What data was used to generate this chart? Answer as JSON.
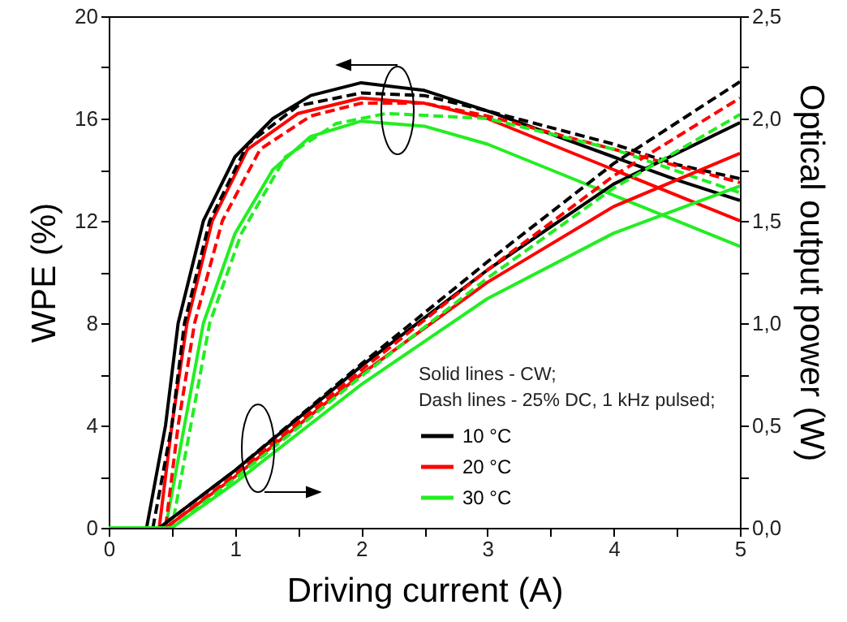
{
  "chart_data": {
    "type": "line",
    "xlabel": "Driving current (A)",
    "ylabel": "WPE (%)",
    "y2label": "Optical output power (W)",
    "xlim": [
      0,
      5
    ],
    "xticks": [
      0,
      {
        "value": 0.5,
        "label": null
      },
      1,
      {
        "value": 1.5,
        "label": null
      },
      2,
      {
        "value": 2.5,
        "label": null
      },
      3,
      {
        "value": 3.5,
        "label": null
      },
      4,
      {
        "value": 4.5,
        "label": null
      },
      5
    ],
    "ylim": [
      0,
      20
    ],
    "yticks": [
      0,
      {
        "value": 2,
        "label": null
      },
      4,
      {
        "value": 6,
        "label": null
      },
      8,
      {
        "value": 10,
        "label": null
      },
      12,
      {
        "value": 14,
        "label": null
      },
      16,
      {
        "value": 18,
        "label": null
      },
      20
    ],
    "y2lim": [
      0,
      2.5
    ],
    "y2ticks": [
      {
        "value": 0,
        "label": "0,0"
      },
      {
        "value": 0.25,
        "label": null
      },
      {
        "value": 0.5,
        "label": "0,5"
      },
      {
        "value": 0.75,
        "label": null
      },
      {
        "value": 1,
        "label": "1,0"
      },
      {
        "value": 1.25,
        "label": null
      },
      {
        "value": 1.5,
        "label": "1,5"
      },
      {
        "value": 1.75,
        "label": null
      },
      {
        "value": 2,
        "label": "2,0"
      },
      {
        "value": 2.25,
        "label": null
      },
      {
        "value": 2.5,
        "label": "2,5"
      }
    ],
    "legend": "bottom right",
    "grid": false,
    "marker": "none",
    "annotations": [
      "Solid lines - CW;",
      "Dash lines - 25% DC, 1 kHz pulsed;"
    ],
    "series": [
      {
        "name": "10 °C",
        "color": "#000000",
        "line_style": "solid",
        "x": [
          0,
          0.3,
          0.45,
          0.55,
          0.75,
          1,
          1.3,
          1.6,
          2,
          2.5,
          3,
          3.5,
          4,
          4.5,
          5
        ],
        "values": [
          0,
          0,
          4,
          8,
          12,
          14.5,
          16,
          16.9,
          17.4,
          17.1,
          16.3,
          15.4,
          14.5,
          13.6,
          12.8
        ]
      },
      {
        "name": "20 °C",
        "color": "#ff0000",
        "line_style": "solid",
        "x": [
          0,
          0.4,
          0.5,
          0.62,
          0.82,
          1.1,
          1.5,
          2,
          2.5,
          3,
          4,
          5
        ],
        "values": [
          0,
          0,
          4,
          8,
          12,
          14.8,
          16.2,
          16.8,
          16.6,
          16,
          14,
          12
        ]
      },
      {
        "name": "30 °C",
        "color": "#22ee22",
        "line_style": "solid",
        "x": [
          0,
          0.45,
          0.6,
          0.75,
          1,
          1.3,
          1.6,
          2,
          2.5,
          3,
          4,
          5
        ],
        "values": [
          0,
          0,
          4,
          8,
          11.5,
          14,
          15.3,
          15.9,
          15.7,
          15,
          13,
          11
        ]
      },
      {
        "color": "#000000",
        "line_style": "dashed",
        "x": [
          0,
          0.35,
          0.5,
          0.6,
          0.8,
          1.1,
          1.5,
          2,
          2.5,
          3,
          4,
          4.5,
          5
        ],
        "values": [
          0,
          0,
          4,
          8,
          12,
          15,
          16.5,
          17,
          16.9,
          16.3,
          15,
          14.2,
          13.65
        ]
      },
      {
        "color": "#ff0000",
        "line_style": "dashed",
        "x": [
          0,
          0.45,
          0.55,
          0.68,
          0.9,
          1.2,
          1.6,
          2,
          2.5,
          3,
          4,
          5
        ],
        "values": [
          0,
          0,
          4,
          8,
          12,
          14.8,
          16.1,
          16.6,
          16.6,
          16.1,
          14.8,
          13.5
        ]
      },
      {
        "color": "#22ee22",
        "line_style": "dashed",
        "x": [
          0,
          0.5,
          0.65,
          0.8,
          1.05,
          1.4,
          1.8,
          2.2,
          3,
          4,
          5
        ],
        "values": [
          0,
          0,
          4,
          8,
          11.5,
          14.5,
          15.8,
          16.2,
          16,
          14.8,
          13.1
        ]
      },
      {
        "color": "#000000",
        "line_style": "solid",
        "axis": "y2",
        "x": [
          0,
          0.4,
          1,
          2,
          3,
          4,
          5
        ],
        "values": [
          0,
          0,
          0.28,
          0.79,
          1.26,
          1.68,
          1.98
        ]
      },
      {
        "color": "#ff0000",
        "line_style": "solid",
        "axis": "y2",
        "x": [
          0,
          0.45,
          1,
          2,
          3,
          4,
          5
        ],
        "values": [
          0,
          0,
          0.25,
          0.75,
          1.2,
          1.57,
          1.83
        ]
      },
      {
        "color": "#22ee22",
        "line_style": "solid",
        "axis": "y2",
        "x": [
          0,
          0.5,
          1,
          2,
          3,
          4,
          5
        ],
        "values": [
          0,
          0,
          0.22,
          0.7,
          1.12,
          1.44,
          1.67
        ]
      },
      {
        "color": "#000000",
        "line_style": "dashed",
        "axis": "y2",
        "x": [
          0,
          0.4,
          1,
          2,
          3,
          4,
          5
        ],
        "values": [
          0,
          0,
          0.28,
          0.8,
          1.3,
          1.78,
          2.18
        ]
      },
      {
        "color": "#ff0000",
        "line_style": "dashed",
        "axis": "y2",
        "x": [
          0,
          0.45,
          1,
          2,
          3,
          4,
          5
        ],
        "values": [
          0,
          0,
          0.26,
          0.77,
          1.26,
          1.72,
          2.1
        ]
      },
      {
        "color": "#22ee22",
        "line_style": "dashed",
        "axis": "y2",
        "x": [
          0,
          0.5,
          1,
          2,
          3,
          4,
          5
        ],
        "values": [
          0,
          0,
          0.24,
          0.74,
          1.22,
          1.66,
          2.02
        ]
      }
    ]
  }
}
